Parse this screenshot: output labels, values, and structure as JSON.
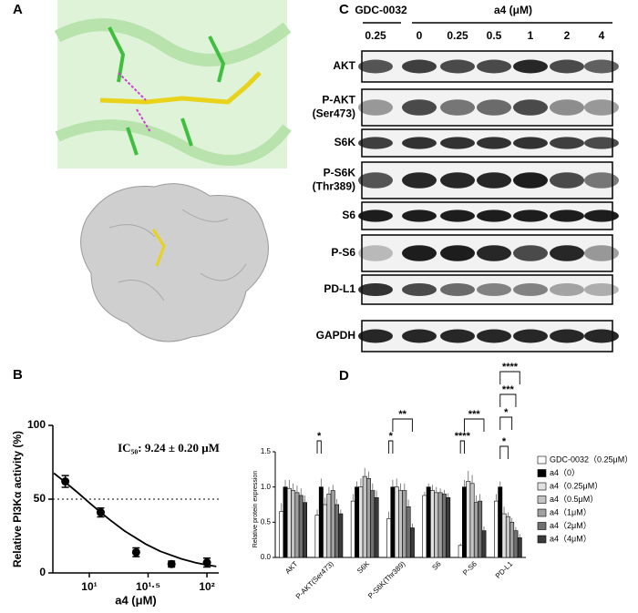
{
  "panel_labels": [
    "A",
    "B",
    "C",
    "D"
  ],
  "blot": {
    "control": "GDC-0032",
    "treatment": "a4 (μM)",
    "concentrations": [
      "0.25",
      "0",
      "0.25",
      "0.5",
      "1",
      "2",
      "4"
    ],
    "rows": [
      [
        "AKT"
      ],
      [
        "P-AKT",
        "(Ser473)"
      ],
      [
        "S6K"
      ],
      [
        "P-S6K",
        "(Thr389)"
      ],
      [
        "S6"
      ],
      [
        "P-S6"
      ],
      [
        "PD-L1"
      ],
      [
        "GAPDH"
      ]
    ]
  },
  "chart_data": [
    {
      "type": "scatter",
      "annotation": "IC₅₀: 9.24 ± 0.20 μM",
      "xlabel": "a4 (μM)",
      "ylabel": "Relative PI3Kα activity (%)",
      "x": [
        6.25,
        12.5,
        25,
        50,
        100
      ],
      "values": [
        62,
        41,
        14,
        6,
        7
      ],
      "errors": [
        4,
        3,
        3,
        2,
        3
      ],
      "color": "#000000",
      "curve": {
        "x": [
          5,
          6.25,
          8,
          10,
          12.5,
          15,
          20,
          30,
          40,
          60,
          80,
          100,
          120
        ],
        "values": [
          67.6,
          61.5,
          54.3,
          47.6,
          41.0,
          35.9,
          28.4,
          19.6,
          14.7,
          9.6,
          7.0,
          5.4,
          4.4
        ]
      },
      "xlim": [
        4.9,
        126
      ],
      "ylim": [
        0,
        100
      ],
      "xticks": [
        {
          "value": 10,
          "label": "10¹"
        },
        {
          "value": 31.62,
          "label": "10¹·⁵"
        },
        {
          "value": 100,
          "label": "10²"
        }
      ],
      "yticks": [
        0,
        50,
        100
      ],
      "log_x": true,
      "reference_line": 50
    },
    {
      "type": "bar",
      "ylabel": "Relative protein expression",
      "categories": [
        "AKT",
        "P-AKT(Ser473)",
        "S6K",
        "P-S6K(Thr389)",
        "S6",
        "P-S6",
        "PD-L1"
      ],
      "ylim": [
        0,
        1.5
      ],
      "yticks": [
        {
          "value": 0,
          "label": "0.0"
        },
        {
          "value": 0.5,
          "label": "0.5"
        },
        {
          "value": 1,
          "label": "1.0"
        },
        {
          "value": 1.5,
          "label": "1.5"
        }
      ],
      "series": [
        {
          "name": "GDC-0032（0.25μM）",
          "color": "#ffffff",
          "values": [
            0.65,
            0.6,
            0.8,
            0.55,
            0.88,
            0.17,
            0.8
          ],
          "errors": [
            0.12,
            0.08,
            0.1,
            0.1,
            0.05,
            0.03,
            0.1
          ]
        },
        {
          "name": "a4（0）",
          "color": "#000000",
          "values": [
            1.0,
            1.0,
            1.0,
            1.0,
            1.0,
            1.0,
            1.0
          ],
          "errors": [
            0.1,
            0.12,
            0.08,
            0.1,
            0.05,
            0.1,
            0.08
          ]
        },
        {
          "name": "a4（0.25μM）",
          "color": "#e2e2e2",
          "values": [
            0.98,
            0.75,
            1.0,
            1.0,
            0.95,
            1.08,
            0.62
          ],
          "errors": [
            0.12,
            0.1,
            0.12,
            0.12,
            0.08,
            0.15,
            0.1
          ]
        },
        {
          "name": "a4（0.5μM）",
          "color": "#c4c4c4",
          "values": [
            0.95,
            0.9,
            1.15,
            0.95,
            0.92,
            1.05,
            0.58
          ],
          "errors": [
            0.1,
            0.1,
            0.12,
            0.1,
            0.08,
            0.12,
            0.06
          ]
        },
        {
          "name": "a4（1μM）",
          "color": "#a0a0a0",
          "values": [
            0.92,
            0.95,
            1.12,
            0.95,
            0.92,
            0.78,
            0.5
          ],
          "errors": [
            0.1,
            0.08,
            0.1,
            0.1,
            0.06,
            0.1,
            0.06
          ]
        },
        {
          "name": "a4（2μM）",
          "color": "#707070",
          "values": [
            0.88,
            0.75,
            0.95,
            0.72,
            0.9,
            0.8,
            0.38
          ],
          "errors": [
            0.1,
            0.08,
            0.1,
            0.1,
            0.06,
            0.1,
            0.05
          ]
        },
        {
          "name": "a4（4μM）",
          "color": "#3a3a3a",
          "values": [
            0.78,
            0.62,
            0.85,
            0.42,
            0.85,
            0.38,
            0.28
          ],
          "errors": [
            0.1,
            0.06,
            0.1,
            0.06,
            0.06,
            0.06,
            0.05
          ]
        }
      ],
      "significance": [
        "*",
        "*",
        "**",
        "****",
        "***",
        "*",
        "*",
        "***",
        "****"
      ]
    }
  ]
}
